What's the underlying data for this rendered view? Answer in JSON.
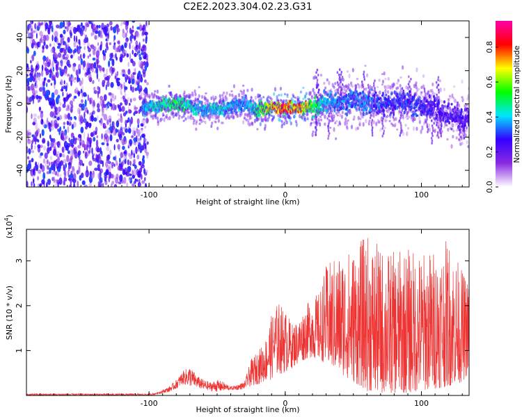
{
  "figure": {
    "title": "C2E2.2023.304.02.23.G31"
  },
  "chart_data": [
    {
      "type": "heatmap",
      "xlabel": "Height of straight line (km)",
      "ylabel": "Frequency (Hz)",
      "xlim": [
        -190,
        135
      ],
      "ylim": [
        -50,
        50
      ],
      "x_ticks": [
        -100,
        0,
        100
      ],
      "y_ticks": [
        -40,
        -20,
        0,
        20,
        40
      ],
      "colorbar": {
        "label": "Normalized spectral amplitude",
        "range": [
          0,
          0.95
        ],
        "ticks": [
          "0.0",
          "0.2",
          "0.4",
          "0.6",
          "0.8"
        ],
        "colormap": [
          "#ffffff",
          "#8a2be2",
          "#3300ff",
          "#00e5ff",
          "#00ff00",
          "#ffff00",
          "#ff0000",
          "#ff00aa"
        ]
      },
      "noise_region_x": [
        -190,
        -105
      ],
      "signal_track": {
        "x": [
          -105,
          -90,
          -80,
          -70,
          -60,
          -50,
          -40,
          -30,
          -25,
          -20,
          -15,
          -10,
          -5,
          0,
          5,
          10,
          15,
          20,
          30,
          40,
          50,
          60,
          70,
          80,
          90,
          100,
          110,
          120,
          125,
          130,
          135
        ],
        "freq": [
          -3,
          -1,
          0,
          -1,
          -4,
          -3,
          -2,
          0,
          -2,
          -4,
          -3,
          -2,
          -2,
          -3,
          -2,
          -2,
          -2,
          -1,
          0,
          1,
          2,
          1,
          0,
          1,
          0,
          -1,
          -3,
          -6,
          -8,
          -10,
          -6
        ],
        "amplitude": [
          0.4,
          0.55,
          0.6,
          0.5,
          0.45,
          0.5,
          0.45,
          0.4,
          0.45,
          0.6,
          0.7,
          0.8,
          0.9,
          0.9,
          0.85,
          0.85,
          0.8,
          0.6,
          0.45,
          0.4,
          0.4,
          0.4,
          0.35,
          0.35,
          0.35,
          0.35,
          0.3,
          0.3,
          0.3,
          0.3,
          0.3
        ]
      }
    },
    {
      "type": "line",
      "xlabel": "Height of straight line (km)",
      "ylabel": "SNR (10 * v/v)",
      "y_multiplier": "(x10",
      "y_multiplier_exp": "4",
      "y_multiplier_close": ")",
      "xlim": [
        -190,
        135
      ],
      "ylim": [
        0,
        3.7
      ],
      "x_ticks": [
        -100,
        0,
        100
      ],
      "y_ticks": [
        1,
        2,
        3
      ],
      "color": "#ee3333",
      "envelope": {
        "x": [
          -190,
          -100,
          -95,
          -85,
          -80,
          -75,
          -70,
          -65,
          -60,
          -55,
          -50,
          -45,
          -40,
          -35,
          -30,
          -25,
          -20,
          -15,
          -10,
          -5,
          0,
          5,
          10,
          15,
          20,
          25,
          30,
          40,
          50,
          60,
          70,
          80,
          90,
          100,
          110,
          120,
          130,
          135
        ],
        "lower": [
          0.0,
          0.0,
          0.02,
          0.08,
          0.15,
          0.25,
          0.2,
          0.18,
          0.12,
          0.1,
          0.08,
          0.1,
          0.12,
          0.12,
          0.15,
          0.2,
          0.25,
          0.3,
          0.35,
          0.45,
          0.5,
          0.6,
          0.7,
          0.8,
          0.85,
          0.8,
          0.7,
          0.5,
          0.3,
          0.1,
          0.05,
          0.05,
          0.05,
          0.1,
          0.15,
          0.2,
          0.3,
          0.5
        ],
        "upper": [
          0.04,
          0.04,
          0.06,
          0.2,
          0.35,
          0.55,
          0.65,
          0.45,
          0.35,
          0.3,
          0.35,
          0.3,
          0.2,
          0.25,
          0.3,
          0.8,
          1.0,
          1.2,
          1.8,
          2.1,
          1.9,
          1.6,
          1.7,
          2.0,
          2.2,
          2.3,
          2.9,
          3.2,
          3.3,
          3.6,
          3.3,
          3.2,
          3.3,
          3.2,
          3.3,
          3.5,
          2.8,
          2.6
        ]
      }
    }
  ]
}
